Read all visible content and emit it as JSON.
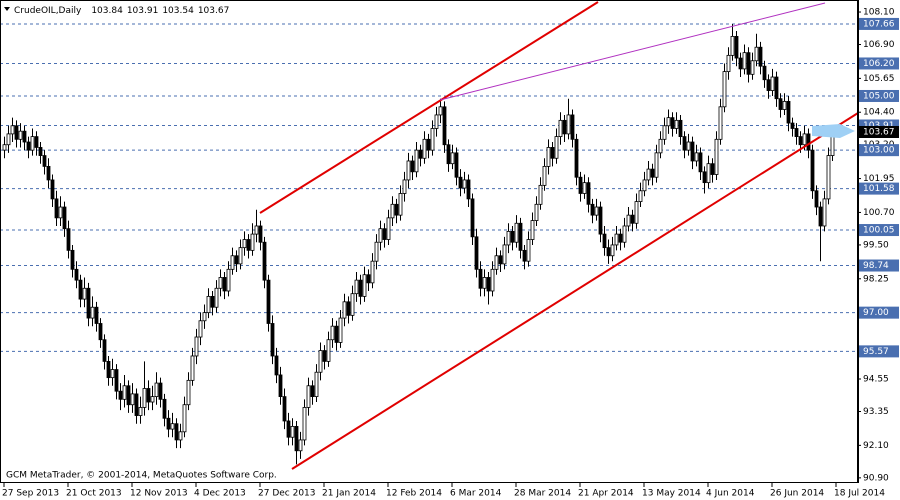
{
  "chart_data": {
    "type": "candlestick",
    "title": "CrudeOIL,Daily",
    "last_ohlc": [
      103.84,
      103.91,
      103.54,
      103.67
    ],
    "footer": "GCM MetaTrader, © 2001-2014, MetaQuotes Software Corp.",
    "color_up": "#ffffff",
    "color_down": "#000000",
    "level_color": "#4a6fb0",
    "current_price": 103.67,
    "ylim": [
      90.71,
      108.47
    ],
    "yticks": [
      {
        "value": 90.9,
        "label": "90.90"
      },
      {
        "value": 92.1,
        "label": "92.10"
      },
      93.35,
      94.55,
      98.25,
      {
        "value": 99.5,
        "label": "99.50"
      },
      {
        "value": 100.7,
        "label": "100.70"
      },
      101.95,
      {
        "value": 103.2,
        "label": "103.20"
      },
      {
        "value": 104.4,
        "label": "104.40"
      },
      105.65,
      {
        "value": 106.9,
        "label": "106.90"
      },
      {
        "value": 108.1,
        "label": "108.10"
      }
    ],
    "levels": [
      107.66,
      {
        "value": 106.2,
        "label": "106.20"
      },
      {
        "value": 105.0,
        "label": "105.00"
      },
      103.91,
      {
        "value": 103.0,
        "label": "103.00"
      },
      101.58,
      100.05,
      98.74,
      {
        "value": 97.0,
        "label": "97.00"
      },
      95.57
    ],
    "categories": [
      "27 Sep 2013",
      null,
      null,
      null,
      null,
      null,
      null,
      null,
      null,
      null,
      null,
      null,
      null,
      null,
      null,
      null,
      "21 Oct 2013",
      null,
      null,
      null,
      null,
      null,
      null,
      null,
      null,
      null,
      null,
      null,
      null,
      null,
      null,
      null,
      "12 Nov 2013",
      null,
      null,
      null,
      null,
      null,
      null,
      null,
      null,
      null,
      null,
      null,
      null,
      null,
      null,
      null,
      "4 Dec 2013",
      null,
      null,
      null,
      null,
      null,
      null,
      null,
      null,
      null,
      null,
      null,
      null,
      null,
      null,
      null,
      "27 Dec 2013",
      null,
      null,
      null,
      null,
      null,
      null,
      null,
      null,
      null,
      null,
      null,
      null,
      null,
      null,
      null,
      "21 Jan 2014",
      null,
      null,
      null,
      null,
      null,
      null,
      null,
      null,
      null,
      null,
      null,
      null,
      null,
      null,
      null,
      "12 Feb 2014",
      null,
      null,
      null,
      null,
      null,
      null,
      null,
      null,
      null,
      null,
      null,
      null,
      null,
      null,
      null,
      "6 Mar 2014",
      null,
      null,
      null,
      null,
      null,
      null,
      null,
      null,
      null,
      null,
      null,
      null,
      null,
      null,
      null,
      "28 Mar 2014",
      null,
      null,
      null,
      null,
      null,
      null,
      null,
      null,
      null,
      null,
      null,
      null,
      null,
      null,
      null,
      "21 Apr 2014",
      null,
      null,
      null,
      null,
      null,
      null,
      null,
      null,
      null,
      null,
      null,
      null,
      null,
      null,
      null,
      "13 May 2014",
      null,
      null,
      null,
      null,
      null,
      null,
      null,
      null,
      null,
      null,
      null,
      null,
      null,
      null,
      null,
      "4 Jun 2014",
      null,
      null,
      null,
      null,
      null,
      null,
      null,
      null,
      null,
      null,
      null,
      null,
      null,
      null,
      null,
      "26 Jun 2014",
      null,
      null,
      null,
      null,
      null,
      null,
      null,
      null,
      null,
      null,
      null,
      null,
      null,
      null,
      null,
      "18 Jul 2014"
    ],
    "ohlc": [
      [
        103.0,
        103.5,
        102.7,
        103.2
      ],
      [
        103.2,
        103.9,
        102.9,
        103.6
      ],
      [
        103.6,
        104.2,
        103.3,
        103.9
      ],
      [
        103.9,
        104.1,
        103.1,
        103.4
      ],
      [
        103.4,
        104.0,
        103.1,
        103.7
      ],
      [
        103.7,
        103.9,
        103.0,
        103.3
      ],
      [
        103.3,
        103.5,
        102.7,
        103.0
      ],
      [
        103.0,
        103.8,
        102.8,
        103.5
      ],
      [
        103.5,
        103.7,
        102.8,
        103.1
      ],
      [
        103.1,
        103.3,
        102.5,
        102.8
      ],
      [
        102.8,
        103.0,
        102.1,
        102.4
      ],
      [
        102.4,
        102.7,
        101.6,
        101.9
      ],
      [
        101.9,
        102.1,
        100.9,
        101.2
      ],
      [
        101.2,
        101.5,
        100.2,
        100.5
      ],
      [
        100.5,
        101.3,
        100.2,
        100.9
      ],
      [
        100.9,
        101.1,
        99.8,
        100.1
      ],
      [
        100.1,
        100.4,
        99.0,
        99.3
      ],
      [
        99.3,
        99.5,
        98.3,
        98.6
      ],
      [
        98.6,
        98.9,
        97.9,
        98.2
      ],
      [
        98.2,
        98.4,
        97.2,
        97.5
      ],
      [
        97.5,
        98.3,
        97.2,
        97.9
      ],
      [
        97.9,
        98.1,
        96.5,
        96.8
      ],
      [
        96.8,
        97.6,
        96.5,
        97.2
      ],
      [
        97.2,
        97.4,
        96.3,
        96.6
      ],
      [
        96.6,
        96.8,
        95.7,
        96.0
      ],
      [
        96.0,
        96.2,
        94.9,
        95.2
      ],
      [
        95.2,
        95.4,
        94.3,
        94.6
      ],
      [
        94.6,
        95.3,
        94.3,
        94.9
      ],
      [
        94.9,
        95.1,
        93.8,
        94.1
      ],
      [
        94.1,
        94.4,
        93.4,
        93.8
      ],
      [
        93.8,
        94.7,
        93.5,
        94.3
      ],
      [
        94.3,
        94.5,
        93.3,
        93.6
      ],
      [
        93.6,
        94.4,
        93.3,
        94.0
      ],
      [
        94.0,
        94.2,
        92.9,
        93.2
      ],
      [
        93.2,
        93.9,
        92.9,
        93.5
      ],
      [
        93.5,
        95.2,
        93.2,
        94.2
      ],
      [
        94.2,
        94.5,
        93.4,
        93.7
      ],
      [
        93.7,
        94.3,
        93.4,
        93.9
      ],
      [
        93.9,
        94.8,
        93.6,
        94.4
      ],
      [
        94.4,
        94.6,
        93.5,
        93.8
      ],
      [
        93.8,
        94.0,
        92.8,
        93.1
      ],
      [
        93.1,
        93.4,
        92.4,
        92.7
      ],
      [
        92.7,
        93.3,
        92.4,
        92.9
      ],
      [
        92.9,
        93.1,
        92.0,
        92.3
      ],
      [
        92.3,
        92.9,
        92.0,
        92.6
      ],
      [
        92.6,
        93.9,
        92.4,
        93.6
      ],
      [
        93.6,
        94.8,
        93.4,
        94.5
      ],
      [
        94.5,
        95.7,
        94.3,
        95.4
      ],
      [
        95.4,
        96.4,
        95.1,
        96.1
      ],
      [
        96.1,
        97.0,
        95.8,
        96.7
      ],
      [
        96.7,
        97.3,
        96.4,
        97.0
      ],
      [
        97.0,
        97.9,
        96.8,
        97.6
      ],
      [
        97.6,
        97.8,
        96.9,
        97.2
      ],
      [
        97.2,
        98.2,
        97.0,
        97.9
      ],
      [
        97.9,
        98.6,
        97.6,
        98.3
      ],
      [
        98.3,
        98.5,
        97.5,
        97.8
      ],
      [
        97.8,
        98.9,
        97.6,
        98.6
      ],
      [
        98.6,
        99.4,
        98.4,
        99.1
      ],
      [
        99.1,
        99.3,
        98.5,
        98.8
      ],
      [
        98.8,
        99.7,
        98.6,
        99.4
      ],
      [
        99.4,
        100.0,
        99.1,
        99.7
      ],
      [
        99.7,
        99.9,
        99.0,
        99.3
      ],
      [
        99.3,
        100.3,
        99.1,
        99.9
      ],
      [
        99.9,
        100.8,
        99.6,
        100.2
      ],
      [
        100.2,
        100.4,
        99.3,
        99.6
      ],
      [
        99.6,
        99.8,
        97.9,
        98.2
      ],
      [
        98.2,
        98.4,
        96.3,
        96.6
      ],
      [
        96.6,
        96.9,
        95.1,
        95.4
      ],
      [
        95.4,
        95.7,
        94.4,
        94.7
      ],
      [
        94.7,
        95.0,
        93.6,
        93.9
      ],
      [
        93.9,
        94.2,
        92.7,
        93.0
      ],
      [
        93.0,
        93.3,
        92.1,
        92.4
      ],
      [
        92.4,
        93.1,
        92.1,
        92.8
      ],
      [
        92.8,
        93.0,
        91.4,
        91.9
      ],
      [
        91.9,
        92.6,
        91.6,
        92.3
      ],
      [
        92.3,
        93.8,
        92.1,
        93.5
      ],
      [
        93.5,
        94.6,
        93.2,
        94.3
      ],
      [
        94.3,
        94.5,
        93.6,
        93.9
      ],
      [
        93.9,
        95.1,
        93.7,
        94.8
      ],
      [
        94.8,
        95.9,
        94.5,
        95.6
      ],
      [
        95.6,
        95.8,
        94.9,
        95.2
      ],
      [
        95.2,
        96.3,
        95.0,
        96.0
      ],
      [
        96.0,
        96.8,
        95.7,
        96.5
      ],
      [
        96.5,
        96.7,
        95.6,
        95.9
      ],
      [
        95.9,
        97.1,
        95.7,
        96.8
      ],
      [
        96.8,
        97.7,
        96.5,
        97.4
      ],
      [
        97.4,
        97.6,
        96.6,
        96.9
      ],
      [
        96.9,
        98.0,
        96.7,
        97.7
      ],
      [
        97.7,
        98.5,
        97.4,
        98.2
      ],
      [
        98.2,
        98.4,
        97.3,
        97.6
      ],
      [
        97.6,
        98.7,
        97.4,
        98.4
      ],
      [
        98.4,
        98.6,
        97.8,
        98.1
      ],
      [
        98.1,
        99.2,
        97.9,
        98.9
      ],
      [
        98.9,
        99.9,
        98.6,
        99.6
      ],
      [
        99.6,
        100.4,
        99.3,
        100.1
      ],
      [
        100.1,
        100.3,
        99.4,
        99.7
      ],
      [
        99.7,
        100.8,
        99.5,
        100.5
      ],
      [
        100.5,
        101.3,
        100.2,
        101.0
      ],
      [
        101.0,
        101.2,
        100.3,
        100.6
      ],
      [
        100.6,
        101.7,
        100.4,
        101.4
      ],
      [
        101.4,
        102.2,
        101.1,
        101.9
      ],
      [
        101.9,
        102.9,
        101.6,
        102.6
      ],
      [
        102.6,
        102.8,
        101.9,
        102.2
      ],
      [
        102.2,
        103.3,
        102.0,
        103.0
      ],
      [
        103.0,
        103.2,
        102.4,
        102.7
      ],
      [
        102.7,
        103.7,
        102.5,
        103.4
      ],
      [
        103.4,
        103.6,
        102.7,
        103.0
      ],
      [
        103.0,
        104.1,
        102.8,
        103.8
      ],
      [
        103.8,
        104.6,
        103.5,
        104.3
      ],
      [
        104.3,
        104.9,
        104.0,
        104.6
      ],
      [
        104.6,
        104.8,
        102.9,
        103.2
      ],
      [
        103.2,
        103.4,
        102.2,
        102.5
      ],
      [
        102.5,
        103.2,
        102.3,
        102.9
      ],
      [
        102.9,
        103.1,
        101.7,
        102.0
      ],
      [
        102.0,
        102.3,
        101.3,
        101.6
      ],
      [
        101.6,
        102.2,
        101.4,
        101.9
      ],
      [
        101.9,
        102.1,
        100.9,
        101.2
      ],
      [
        101.2,
        101.4,
        99.5,
        99.8
      ],
      [
        99.8,
        100.1,
        98.3,
        98.6
      ],
      [
        98.6,
        98.9,
        97.6,
        97.9
      ],
      [
        97.9,
        98.6,
        97.6,
        98.3
      ],
      [
        98.3,
        98.5,
        97.3,
        97.8
      ],
      [
        97.8,
        98.9,
        97.6,
        98.6
      ],
      [
        98.6,
        99.4,
        98.4,
        99.1
      ],
      [
        99.1,
        99.3,
        98.5,
        98.8
      ],
      [
        98.8,
        99.8,
        98.6,
        99.5
      ],
      [
        99.5,
        100.3,
        99.2,
        100.0
      ],
      [
        100.0,
        100.2,
        99.3,
        99.6
      ],
      [
        99.6,
        100.6,
        99.4,
        100.3
      ],
      [
        100.3,
        100.5,
        99.0,
        99.3
      ],
      [
        99.3,
        99.5,
        98.6,
        98.9
      ],
      [
        98.9,
        100.0,
        98.7,
        99.7
      ],
      [
        99.7,
        100.7,
        99.5,
        100.4
      ],
      [
        100.4,
        101.3,
        100.2,
        101.0
      ],
      [
        101.0,
        102.0,
        100.8,
        101.7
      ],
      [
        101.7,
        102.7,
        101.5,
        102.4
      ],
      [
        102.4,
        103.4,
        102.1,
        103.1
      ],
      [
        103.1,
        103.3,
        102.4,
        102.7
      ],
      [
        102.7,
        103.8,
        102.5,
        103.5
      ],
      [
        103.5,
        104.4,
        103.2,
        104.1
      ],
      [
        104.1,
        104.3,
        103.3,
        103.6
      ],
      [
        103.6,
        104.9,
        103.4,
        104.3
      ],
      [
        104.3,
        104.5,
        103.1,
        103.4
      ],
      [
        103.4,
        103.6,
        101.7,
        102.0
      ],
      [
        102.0,
        102.2,
        101.1,
        101.4
      ],
      [
        101.4,
        102.1,
        101.2,
        101.8
      ],
      [
        101.8,
        102.0,
        100.7,
        101.0
      ],
      [
        101.0,
        101.2,
        100.3,
        100.6
      ],
      [
        100.6,
        101.2,
        100.4,
        100.9
      ],
      [
        100.9,
        101.1,
        99.6,
        99.9
      ],
      [
        99.9,
        100.2,
        99.1,
        99.4
      ],
      [
        99.4,
        99.7,
        98.8,
        99.1
      ],
      [
        99.1,
        99.8,
        98.9,
        99.5
      ],
      [
        99.5,
        100.2,
        99.3,
        99.9
      ],
      [
        99.9,
        100.1,
        99.3,
        99.6
      ],
      [
        99.6,
        100.5,
        99.4,
        100.2
      ],
      [
        100.2,
        100.9,
        100.0,
        100.6
      ],
      [
        100.6,
        100.8,
        100.0,
        100.3
      ],
      [
        100.3,
        101.4,
        100.1,
        101.1
      ],
      [
        101.1,
        101.8,
        100.9,
        101.5
      ],
      [
        101.5,
        102.2,
        101.3,
        101.9
      ],
      [
        101.9,
        102.6,
        101.7,
        102.3
      ],
      [
        102.3,
        102.5,
        101.7,
        102.0
      ],
      [
        102.0,
        103.2,
        101.8,
        102.9
      ],
      [
        102.9,
        103.7,
        102.7,
        103.4
      ],
      [
        103.4,
        104.2,
        103.2,
        103.9
      ],
      [
        103.9,
        104.5,
        103.6,
        104.2
      ],
      [
        104.2,
        104.4,
        103.5,
        103.8
      ],
      [
        103.8,
        104.4,
        103.6,
        104.1
      ],
      [
        104.1,
        104.3,
        103.2,
        103.5
      ],
      [
        103.5,
        103.7,
        102.7,
        103.0
      ],
      [
        103.0,
        103.6,
        102.8,
        103.3
      ],
      [
        103.3,
        103.5,
        102.3,
        102.6
      ],
      [
        102.6,
        103.2,
        102.4,
        102.9
      ],
      [
        102.9,
        103.1,
        101.9,
        102.2
      ],
      [
        102.2,
        102.4,
        101.4,
        101.8
      ],
      [
        101.8,
        102.8,
        101.6,
        102.5
      ],
      [
        102.5,
        102.7,
        101.8,
        102.1
      ],
      [
        102.1,
        103.7,
        101.9,
        103.4
      ],
      [
        103.4,
        104.9,
        103.2,
        104.6
      ],
      [
        104.6,
        106.2,
        104.4,
        105.9
      ],
      [
        105.9,
        106.8,
        105.6,
        106.5
      ],
      [
        106.5,
        107.66,
        106.3,
        107.2
      ],
      [
        107.2,
        107.4,
        106.1,
        106.4
      ],
      [
        106.4,
        106.6,
        105.7,
        106.0
      ],
      [
        106.0,
        106.9,
        105.8,
        106.6
      ],
      [
        106.6,
        106.8,
        105.5,
        105.8
      ],
      [
        105.8,
        106.6,
        105.6,
        106.3
      ],
      [
        106.3,
        107.3,
        106.1,
        106.8
      ],
      [
        106.8,
        107.0,
        105.8,
        106.1
      ],
      [
        106.1,
        106.3,
        105.3,
        105.6
      ],
      [
        105.6,
        105.8,
        104.9,
        105.2
      ],
      [
        105.2,
        106.0,
        105.0,
        105.7
      ],
      [
        105.7,
        105.9,
        104.6,
        104.9
      ],
      [
        104.9,
        105.1,
        104.2,
        104.5
      ],
      [
        104.5,
        105.1,
        104.3,
        104.8
      ],
      [
        104.8,
        105.0,
        103.7,
        104.0
      ],
      [
        104.0,
        104.2,
        103.5,
        103.8
      ],
      [
        103.8,
        104.0,
        103.2,
        103.5
      ],
      [
        103.5,
        103.7,
        102.9,
        103.2
      ],
      [
        103.2,
        103.9,
        103.0,
        103.6
      ],
      [
        103.6,
        103.8,
        102.7,
        103.0
      ],
      [
        103.0,
        103.2,
        101.2,
        101.5
      ],
      [
        101.5,
        101.7,
        100.6,
        100.9
      ],
      [
        100.9,
        101.1,
        98.9,
        100.2
      ],
      [
        100.2,
        101.5,
        100.0,
        101.2
      ],
      [
        101.2,
        103.1,
        101.0,
        102.8
      ],
      [
        102.8,
        103.9,
        102.6,
        103.6
      ],
      [
        103.84,
        103.91,
        103.54,
        103.67
      ]
    ]
  }
}
